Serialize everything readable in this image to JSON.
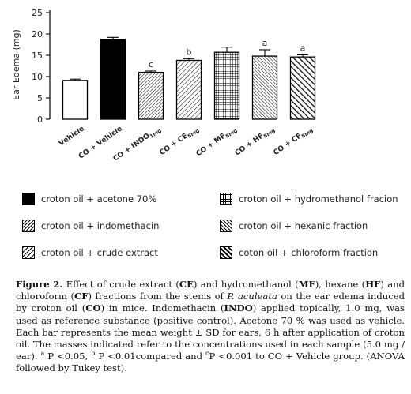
{
  "chart_data": {
    "type": "bar",
    "ylabel": "Ear Edema (mg)",
    "ylim": [
      0,
      25
    ],
    "yticks": [
      "0",
      "5",
      "10",
      "15",
      "20",
      "25"
    ],
    "categories": [
      {
        "label": "Vehicle",
        "sub": ""
      },
      {
        "label": "CO + Vehicle",
        "sub": ""
      },
      {
        "label": "CO + INDO",
        "sub": "1mg"
      },
      {
        "label": "CO + CE",
        "sub": "5mg"
      },
      {
        "label": "CO + MF",
        "sub": "5mg"
      },
      {
        "label": "CO + HF",
        "sub": "5mg"
      },
      {
        "label": "CO + CF",
        "sub": "5mg"
      }
    ],
    "values": [
      9.1,
      18.7,
      11.0,
      13.8,
      15.7,
      14.8,
      14.6
    ],
    "errors": [
      0.3,
      0.5,
      0.3,
      0.4,
      1.2,
      1.5,
      0.5
    ],
    "significance": [
      "",
      "",
      "c",
      "b",
      "",
      "a",
      "a"
    ],
    "patterns": [
      "white",
      "solid",
      "fine",
      "wide",
      "grid",
      "hex",
      "thick"
    ]
  },
  "legend": [
    {
      "pattern": "solid",
      "label": "croton oil + acetone 70%"
    },
    {
      "pattern": "grid",
      "label": "croton oil + hydromethanol fracion"
    },
    {
      "pattern": "fine",
      "label": "croton oil + indomethacin"
    },
    {
      "pattern": "hex",
      "label": "croton oil + hexanic fraction"
    },
    {
      "pattern": "wide",
      "label": "croton oil + crude extract"
    },
    {
      "pattern": "thick",
      "label": "coton oil + chloroform fraction"
    }
  ],
  "caption": {
    "figure_label": "Figure 2.",
    "t1": " Effect of crude extract (",
    "ce": "CE",
    "t2": ") and hydromethanol (",
    "mf": "MF",
    "t3": "), hexane (",
    "hf": "HF",
    "t4": ") and chloroform (",
    "cf": "CF",
    "t5": ") fractions from the stems of ",
    "species": "P. aculeata",
    "t6": " on the ear edema induced by croton oil (",
    "co": "CO",
    "t7": ") in mice. Indomethacin (",
    "indo": "INDO",
    "t8": ") applied topically, 1.0 mg, was used as reference substance (positive control). Acetone 70 % was used as vehicle. Each bar represents the mean weight ± SD for ears, 6 h after application of croton oil. The masses indicated refer to the concentrations used in each sample (5.0 mg / ear). ",
    "sa": "a",
    "t9": " P <0.05, ",
    "sb": "b",
    "t10": " P <0.01compared and ",
    "sc": "c",
    "t11": "P <0.001 to CO + Vehicle group. (ANOVA followed by Tukey test)."
  }
}
